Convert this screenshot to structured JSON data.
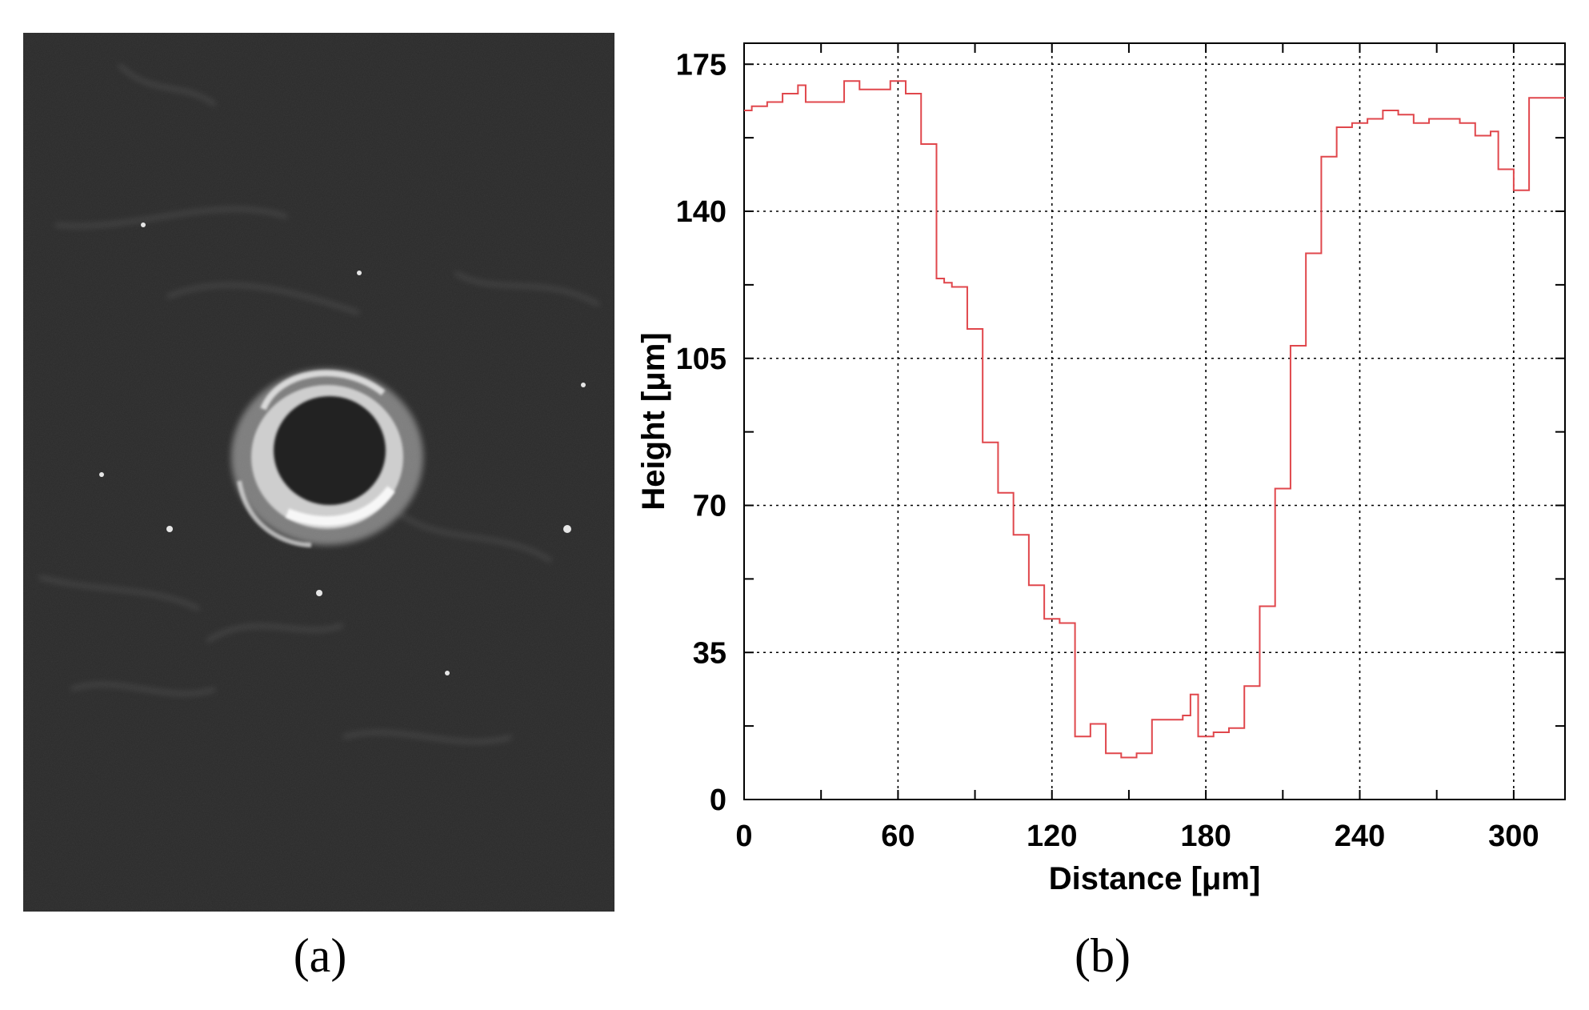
{
  "panel_a": {
    "caption": "(a)",
    "image_description": "grayscale micrograph"
  },
  "panel_b": {
    "caption": "(b)"
  },
  "chart_data": {
    "type": "line",
    "step": true,
    "xlabel": "Distance [μm]",
    "ylabel": "Height [μm]",
    "xlim": [
      0,
      320
    ],
    "ylim": [
      0,
      180
    ],
    "x_ticks": [
      0,
      60,
      120,
      180,
      240,
      300
    ],
    "y_ticks": [
      0,
      35,
      70,
      105,
      140,
      175
    ],
    "grid": true,
    "grid_style": "dotted",
    "series": [
      {
        "color": "#e0474c",
        "x": [
          0,
          3,
          6,
          9,
          12,
          15,
          18,
          21,
          24,
          27,
          30,
          33,
          36,
          39,
          42,
          45,
          48,
          51,
          54,
          57,
          60,
          63,
          66,
          69,
          72,
          75,
          78,
          81,
          84,
          87,
          90,
          93,
          96,
          99,
          102,
          105,
          108,
          111,
          114,
          117,
          120,
          123,
          126,
          129,
          132,
          135,
          138,
          141,
          144,
          147,
          150,
          153,
          156,
          159,
          162,
          165,
          168,
          171,
          174,
          177,
          180,
          183,
          186,
          189,
          192,
          195,
          198,
          201,
          204,
          207,
          210,
          213,
          216,
          219,
          222,
          225,
          228,
          231,
          234,
          237,
          240,
          243,
          246,
          249,
          252,
          255,
          258,
          261,
          264,
          267,
          270,
          273,
          276,
          279,
          282,
          285,
          288,
          291,
          294,
          297,
          300,
          303,
          306,
          309,
          312,
          315,
          318,
          321
        ],
        "y": [
          164,
          165,
          165,
          166,
          166,
          168,
          168,
          170,
          166,
          166,
          166,
          166,
          166,
          171,
          171,
          169,
          169,
          169,
          169,
          171,
          171,
          168,
          168,
          156,
          156,
          124,
          123,
          122,
          122,
          112,
          112,
          85,
          85,
          73,
          73,
          63,
          63,
          51,
          51,
          43,
          43,
          42,
          42,
          15,
          15,
          18,
          18,
          11,
          11,
          10,
          10,
          11,
          11,
          19,
          19,
          19,
          19,
          20,
          25,
          15,
          15,
          16,
          16,
          17,
          17,
          27,
          27,
          46,
          46,
          74,
          74,
          108,
          108,
          130,
          130,
          153,
          153,
          160,
          160,
          161,
          161,
          162,
          162,
          164,
          164,
          163,
          163,
          161,
          161,
          162,
          162,
          162,
          162,
          161,
          161,
          158,
          158,
          159,
          150,
          150,
          145,
          145,
          167,
          167,
          167,
          167,
          167,
          167
        ]
      }
    ]
  }
}
